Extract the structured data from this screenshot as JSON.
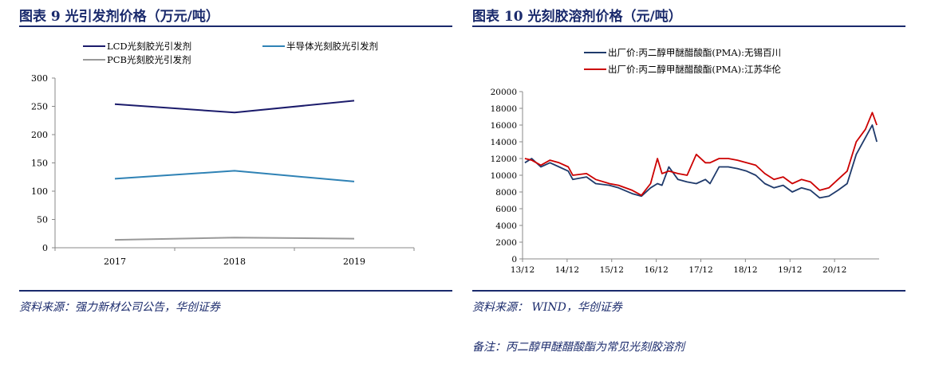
{
  "left": {
    "title": "图表 9   光引发剂价格（万元/吨）",
    "source": "资料来源：强力新材公司公告，华创证券",
    "chart_data": {
      "type": "line",
      "categories": [
        "2017",
        "2018",
        "2019"
      ],
      "series": [
        {
          "name": "LCD光刻胶光引发剂",
          "values": [
            254,
            239,
            260
          ],
          "color": "#1b1b6b"
        },
        {
          "name": "半导体光刻胶光引发剂",
          "values": [
            122,
            136,
            117
          ],
          "color": "#2f82b5"
        },
        {
          "name": "PCB光刻胶光引发剂",
          "values": [
            14,
            18,
            16
          ],
          "color": "#999999"
        }
      ],
      "ylim": [
        0,
        300
      ],
      "yticks": [
        "0",
        "50",
        "100",
        "150",
        "200",
        "250",
        "300"
      ],
      "grid": false,
      "legend": "top"
    }
  },
  "right": {
    "title": "图表 10   光刻胶溶剂价格（元/吨）",
    "source": "资料来源：  WIND，华创证券",
    "note": "备注：丙二醇甲醚醋酸酯为常见光刻胶溶剂",
    "chart_data": {
      "type": "line",
      "x_tick_labels": [
        "13/12",
        "14/12",
        "15/12",
        "16/12",
        "17/12",
        "18/12",
        "19/12",
        "20/12"
      ],
      "x_range": [
        2013.9,
        2021.7
      ],
      "ylim": [
        0,
        20000
      ],
      "yticks": [
        "0",
        "2000",
        "4000",
        "6000",
        "8000",
        "10000",
        "12000",
        "14000",
        "16000",
        "18000",
        "20000"
      ],
      "grid": false,
      "legend": "top",
      "series": [
        {
          "name": "出厂价:丙二醇甲醚醋酸酯(PMA):无锡百川",
          "color": "#1f3a6b",
          "x": [
            2013.95,
            2014.1,
            2014.3,
            2014.5,
            2014.7,
            2014.9,
            2015.0,
            2015.3,
            2015.5,
            2015.8,
            2016.0,
            2016.3,
            2016.5,
            2016.7,
            2016.85,
            2016.95,
            2017.1,
            2017.3,
            2017.5,
            2017.7,
            2017.9,
            2018.0,
            2018.2,
            2018.4,
            2018.6,
            2018.8,
            2019.0,
            2019.2,
            2019.4,
            2019.6,
            2019.8,
            2020.0,
            2020.2,
            2020.4,
            2020.6,
            2020.8,
            2021.0,
            2021.2,
            2021.4,
            2021.55,
            2021.65
          ],
          "y": [
            11500,
            12000,
            11000,
            11500,
            11000,
            10500,
            9500,
            9800,
            9000,
            8800,
            8500,
            7800,
            7500,
            8500,
            9000,
            8800,
            11000,
            9500,
            9200,
            9000,
            9500,
            9000,
            11000,
            11000,
            10800,
            10500,
            10000,
            9000,
            8500,
            8800,
            8000,
            8500,
            8200,
            7300,
            7500,
            8200,
            9000,
            12500,
            14500,
            16000,
            14000
          ]
        },
        {
          "name": "出厂价:丙二醇甲醚醋酸酯(PMA):江苏华伦",
          "color": "#cc0000",
          "x": [
            2013.95,
            2014.1,
            2014.3,
            2014.5,
            2014.7,
            2014.9,
            2015.0,
            2015.3,
            2015.5,
            2015.8,
            2016.0,
            2016.3,
            2016.5,
            2016.7,
            2016.85,
            2016.95,
            2017.1,
            2017.3,
            2017.5,
            2017.7,
            2017.9,
            2018.0,
            2018.2,
            2018.4,
            2018.6,
            2018.8,
            2019.0,
            2019.2,
            2019.4,
            2019.6,
            2019.8,
            2020.0,
            2020.2,
            2020.4,
            2020.6,
            2020.8,
            2021.0,
            2021.2,
            2021.4,
            2021.55,
            2021.65
          ],
          "y": [
            12000,
            11800,
            11200,
            11800,
            11500,
            11000,
            10000,
            10200,
            9500,
            9000,
            8800,
            8200,
            7600,
            9000,
            12000,
            10200,
            10500,
            10200,
            10000,
            12500,
            11500,
            11500,
            12000,
            12000,
            11800,
            11500,
            11200,
            10200,
            9500,
            9800,
            9000,
            9500,
            9200,
            8200,
            8500,
            9500,
            10500,
            14000,
            15500,
            17500,
            16000
          ]
        }
      ]
    }
  }
}
